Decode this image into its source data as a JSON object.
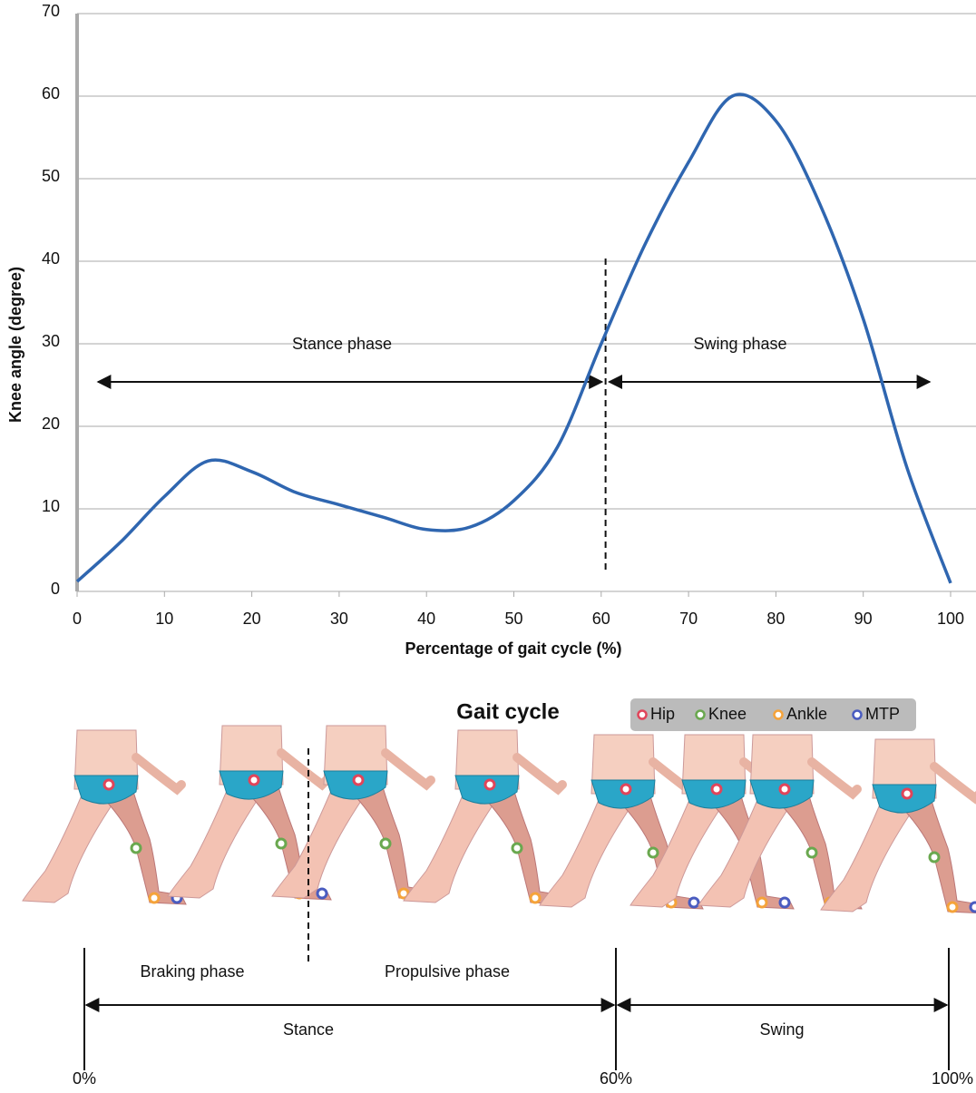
{
  "chart_data": {
    "type": "line",
    "x_label": "Percentage of gait cycle (%)",
    "y_label": "Knee angle (degree)",
    "x": [
      0,
      5,
      10,
      15,
      20,
      25,
      30,
      35,
      40,
      45,
      50,
      55,
      60,
      65,
      70,
      75,
      80,
      85,
      90,
      95,
      100
    ],
    "values": [
      1.2,
      6,
      11.5,
      15.8,
      14.5,
      12,
      10.5,
      9,
      7.5,
      7.8,
      11,
      17.5,
      30,
      42,
      52,
      60,
      57,
      47,
      33,
      15,
      1
    ],
    "color": "#2f66b0",
    "xlim": [
      0,
      100
    ],
    "xticks": [
      0,
      10,
      20,
      30,
      40,
      50,
      60,
      70,
      80,
      90,
      100
    ],
    "ylim": [
      0,
      70
    ],
    "yticks": [
      0,
      10,
      20,
      30,
      40,
      50,
      60,
      70
    ],
    "grid": true,
    "phase_boundary": 60.5,
    "annotations": [
      "Stance phase",
      "Swing phase"
    ]
  },
  "diagram": {
    "title": "Gait cycle",
    "legend": [
      {
        "label": "Hip",
        "color": "#e0455a"
      },
      {
        "label": "Knee",
        "color": "#6aa84f"
      },
      {
        "label": "Ankle",
        "color": "#f5a33a"
      },
      {
        "label": "MTP",
        "color": "#4a5cc0"
      }
    ],
    "phases": [
      "Braking phase",
      "Propulsive phase"
    ],
    "periods": [
      "Stance",
      "Swing"
    ],
    "markers": [
      "0%",
      "60%",
      "100%"
    ]
  }
}
